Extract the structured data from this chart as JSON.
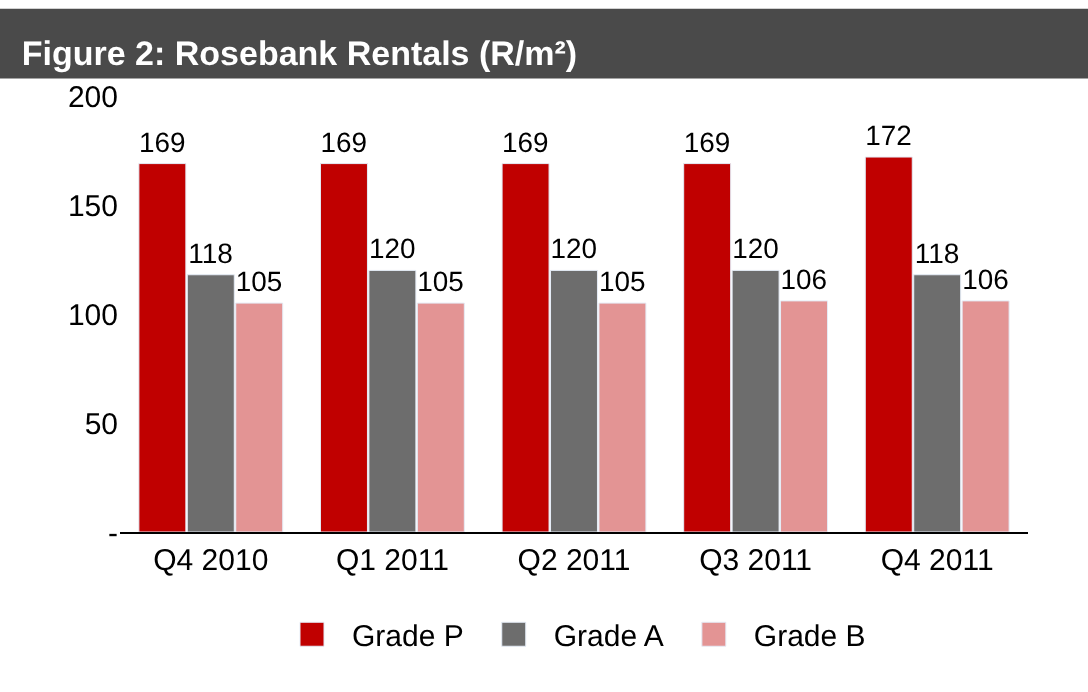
{
  "chart_data": {
    "type": "bar",
    "title": "Figure 2: Rosebank Rentals (R/m²)",
    "categories": [
      "Q4 2010",
      "Q1 2011",
      "Q2 2011",
      "Q3 2011",
      "Q4 2011"
    ],
    "series": [
      {
        "name": "Grade P",
        "color": "#c00000",
        "values": [
          169,
          169,
          169,
          169,
          172
        ]
      },
      {
        "name": "Grade A",
        "color": "#6d6d6d",
        "values": [
          118,
          120,
          120,
          120,
          118
        ]
      },
      {
        "name": "Grade B",
        "color": "#e39494",
        "values": [
          105,
          105,
          105,
          106,
          106
        ]
      }
    ],
    "ylim": [
      0,
      200
    ],
    "yticks": [
      {
        "value": 0,
        "label": "-"
      },
      50,
      100,
      150,
      200
    ],
    "data_labels": true,
    "legend": "bottom"
  }
}
